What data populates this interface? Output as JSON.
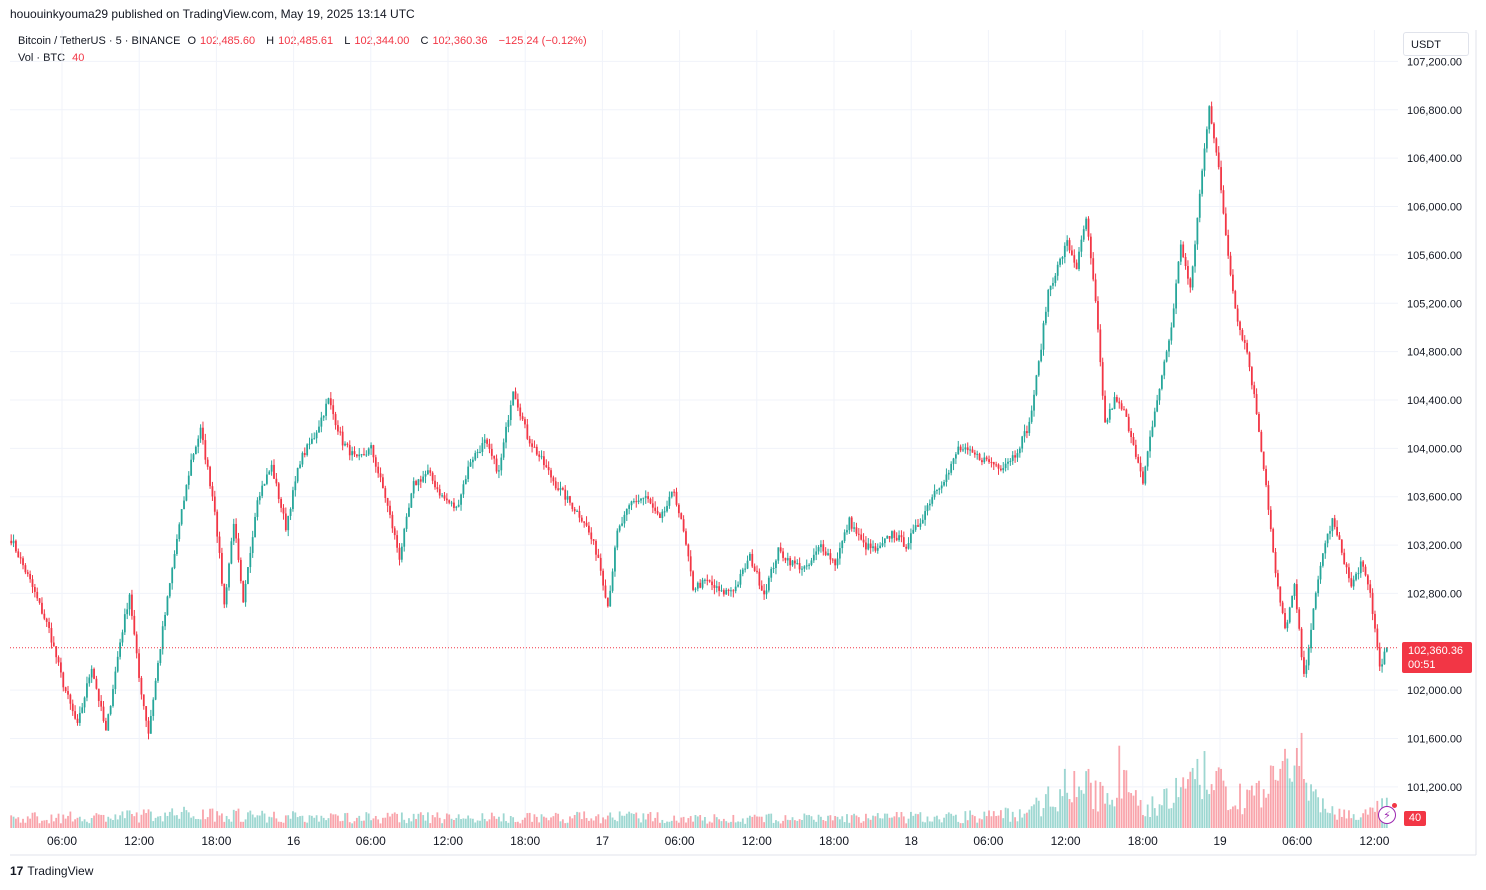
{
  "header": {
    "publisher": "hououinkyouma29",
    "published_text": "published on TradingView.com, May 19, 2025 13:14 UTC"
  },
  "legend": {
    "symbol": "Bitcoin / TetherUS · 5 · BINANCE",
    "open_label": "O",
    "open": "102,485.60",
    "high_label": "H",
    "high": "102,485.61",
    "low_label": "L",
    "low": "102,344.00",
    "close_label": "C",
    "close": "102,360.36",
    "change": "−125.24 (−0.12%)",
    "vol_label": "Vol · BTC",
    "vol_value": "40"
  },
  "unit": "USDT",
  "current_price": {
    "value": "102,360.36",
    "countdown": "00:51"
  },
  "volume_tag": "40",
  "footer": {
    "brand": "TradingView"
  },
  "colors": {
    "up": "#26a69a",
    "down": "#f23645",
    "grid": "#f0f3fa",
    "current_line": "#f23645"
  },
  "chart_data": {
    "type": "candlestick",
    "x_tick_labels": [
      "06:00",
      "12:00",
      "18:00",
      "16",
      "06:00",
      "12:00",
      "18:00",
      "17",
      "06:00",
      "12:00",
      "18:00",
      "18",
      "06:00",
      "12:00",
      "18:00",
      "19",
      "06:00",
      "12:00"
    ],
    "y_tick_labels": [
      "107,200.00",
      "106,800.00",
      "106,400.00",
      "106,000.00",
      "105,600.00",
      "105,200.00",
      "104,800.00",
      "104,400.00",
      "104,000.00",
      "103,600.00",
      "103,200.00",
      "102,800.00",
      "102,000.00",
      "101,600.00",
      "101,200.00"
    ],
    "y_ticks": [
      107200,
      106800,
      106400,
      106000,
      105600,
      105200,
      104800,
      104400,
      104000,
      103600,
      103200,
      102800,
      102000,
      101600,
      101200
    ],
    "ylim": [
      100860,
      107460
    ],
    "price_path": [
      [
        0,
        103250
      ],
      [
        8,
        102900
      ],
      [
        16,
        102500
      ],
      [
        22,
        102050
      ],
      [
        28,
        101700
      ],
      [
        34,
        102200
      ],
      [
        40,
        101650
      ],
      [
        46,
        102400
      ],
      [
        50,
        102800
      ],
      [
        54,
        102100
      ],
      [
        58,
        101650
      ],
      [
        64,
        102500
      ],
      [
        70,
        103250
      ],
      [
        76,
        103900
      ],
      [
        80,
        104150
      ],
      [
        86,
        103500
      ],
      [
        90,
        102700
      ],
      [
        94,
        103400
      ],
      [
        98,
        102700
      ],
      [
        104,
        103600
      ],
      [
        110,
        103850
      ],
      [
        116,
        103350
      ],
      [
        122,
        103900
      ],
      [
        128,
        104100
      ],
      [
        134,
        104400
      ],
      [
        140,
        104050
      ],
      [
        146,
        103900
      ],
      [
        152,
        104000
      ],
      [
        158,
        103600
      ],
      [
        164,
        103100
      ],
      [
        170,
        103700
      ],
      [
        176,
        103800
      ],
      [
        182,
        103600
      ],
      [
        188,
        103500
      ],
      [
        194,
        103900
      ],
      [
        200,
        104050
      ],
      [
        206,
        103800
      ],
      [
        212,
        104500
      ],
      [
        218,
        104100
      ],
      [
        224,
        103900
      ],
      [
        230,
        103700
      ],
      [
        236,
        103550
      ],
      [
        242,
        103400
      ],
      [
        248,
        103100
      ],
      [
        252,
        102700
      ],
      [
        256,
        103300
      ],
      [
        262,
        103550
      ],
      [
        268,
        103600
      ],
      [
        274,
        103400
      ],
      [
        280,
        103650
      ],
      [
        284,
        103300
      ],
      [
        288,
        102850
      ],
      [
        294,
        102900
      ],
      [
        300,
        102800
      ],
      [
        306,
        102850
      ],
      [
        312,
        103100
      ],
      [
        318,
        102800
      ],
      [
        324,
        103150
      ],
      [
        330,
        103050
      ],
      [
        336,
        103000
      ],
      [
        342,
        103200
      ],
      [
        348,
        103050
      ],
      [
        354,
        103400
      ],
      [
        360,
        103200
      ],
      [
        366,
        103150
      ],
      [
        372,
        103300
      ],
      [
        378,
        103200
      ],
      [
        384,
        103400
      ],
      [
        390,
        103650
      ],
      [
        396,
        103800
      ],
      [
        400,
        104000
      ],
      [
        406,
        103950
      ],
      [
        412,
        103900
      ],
      [
        418,
        103850
      ],
      [
        424,
        103950
      ],
      [
        430,
        104200
      ],
      [
        434,
        104700
      ],
      [
        438,
        105300
      ],
      [
        442,
        105500
      ],
      [
        446,
        105700
      ],
      [
        450,
        105500
      ],
      [
        454,
        105900
      ],
      [
        458,
        105200
      ],
      [
        462,
        104200
      ],
      [
        466,
        104400
      ],
      [
        470,
        104300
      ],
      [
        474,
        104050
      ],
      [
        478,
        103700
      ],
      [
        482,
        104200
      ],
      [
        486,
        104600
      ],
      [
        490,
        105000
      ],
      [
        494,
        105700
      ],
      [
        498,
        105300
      ],
      [
        502,
        106100
      ],
      [
        506,
        106850
      ],
      [
        510,
        106300
      ],
      [
        514,
        105600
      ],
      [
        518,
        105050
      ],
      [
        522,
        104800
      ],
      [
        526,
        104300
      ],
      [
        530,
        103700
      ],
      [
        534,
        102950
      ],
      [
        538,
        102500
      ],
      [
        542,
        102850
      ],
      [
        546,
        102100
      ],
      [
        550,
        102650
      ],
      [
        554,
        103150
      ],
      [
        558,
        103400
      ],
      [
        562,
        103150
      ],
      [
        566,
        102850
      ],
      [
        570,
        103050
      ],
      [
        574,
        102800
      ],
      [
        578,
        102200
      ],
      [
        581,
        102340
      ]
    ],
    "volume_path": [
      [
        0,
        20
      ],
      [
        40,
        22
      ],
      [
        60,
        26
      ],
      [
        80,
        30
      ],
      [
        120,
        22
      ],
      [
        200,
        20
      ],
      [
        260,
        22
      ],
      [
        300,
        18
      ],
      [
        360,
        20
      ],
      [
        400,
        22
      ],
      [
        430,
        30
      ],
      [
        440,
        70
      ],
      [
        450,
        95
      ],
      [
        460,
        60
      ],
      [
        470,
        120
      ],
      [
        476,
        40
      ],
      [
        490,
        60
      ],
      [
        500,
        90
      ],
      [
        506,
        110
      ],
      [
        512,
        70
      ],
      [
        520,
        60
      ],
      [
        530,
        80
      ],
      [
        540,
        110
      ],
      [
        546,
        130
      ],
      [
        552,
        55
      ],
      [
        560,
        30
      ],
      [
        570,
        25
      ],
      [
        580,
        40
      ]
    ]
  }
}
